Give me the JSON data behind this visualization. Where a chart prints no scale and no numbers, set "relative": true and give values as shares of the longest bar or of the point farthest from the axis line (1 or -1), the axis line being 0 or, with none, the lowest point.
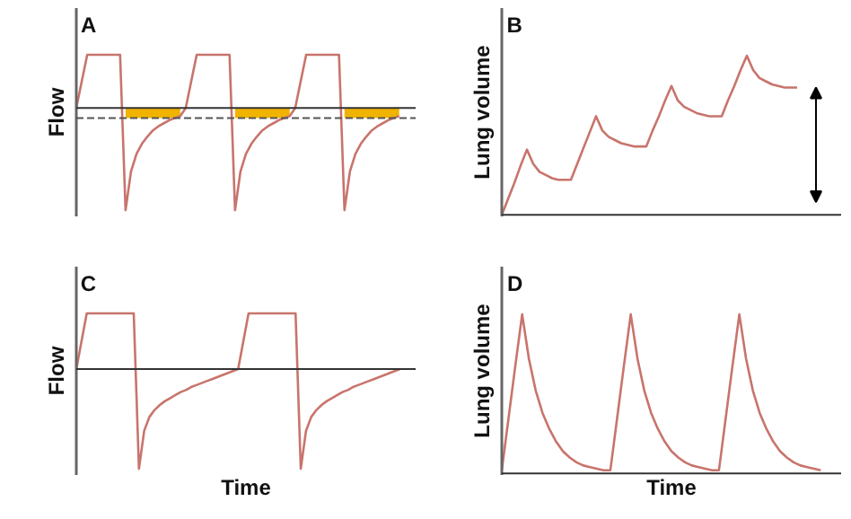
{
  "chart_data": [
    {
      "type": "line",
      "title": "A",
      "ylabel": "Flow",
      "relative": true,
      "categories": [
        null,
        null,
        null,
        null,
        null,
        null,
        null,
        null,
        null,
        null,
        null,
        null,
        null,
        null,
        null,
        null,
        null,
        null,
        null,
        null,
        null,
        null,
        null,
        null,
        null,
        null,
        null,
        null,
        null,
        null,
        null,
        null,
        null,
        null,
        null,
        null,
        null,
        null,
        null,
        null,
        null,
        null,
        null,
        null,
        null,
        null,
        null,
        null,
        null,
        null,
        null,
        null,
        null,
        null,
        null,
        null,
        null,
        null,
        null,
        null
      ],
      "series": [
        {
          "type": "line",
          "color": "#c8746c",
          "values": [
            0,
            0.26,
            0.52,
            0.52,
            0.52,
            0.52,
            0.52,
            0.52,
            0.52,
            -1,
            -0.62,
            -0.45,
            -0.35,
            -0.28,
            -0.22,
            -0.18,
            -0.15,
            -0.12,
            -0.1,
            -0.08,
            0,
            0.26,
            0.52,
            0.52,
            0.52,
            0.52,
            0.52,
            0.52,
            0.52,
            -1,
            -0.62,
            -0.45,
            -0.35,
            -0.28,
            -0.22,
            -0.18,
            -0.15,
            -0.12,
            -0.1,
            -0.08,
            0,
            0.26,
            0.52,
            0.52,
            0.52,
            0.52,
            0.52,
            0.52,
            0.52,
            -1,
            -0.62,
            -0.45,
            -0.35,
            -0.28,
            -0.22,
            -0.18,
            -0.15,
            -0.12,
            -0.1,
            -0.08
          ]
        },
        {
          "type": "area",
          "color": "#f0b400",
          "values": [
            null,
            null,
            null,
            null,
            null,
            null,
            null,
            null,
            null,
            -0.1,
            -0.1,
            -0.1,
            -0.1,
            -0.1,
            -0.1,
            -0.1,
            -0.1,
            -0.1,
            -0.1,
            -0.08,
            null,
            null,
            null,
            null,
            null,
            null,
            null,
            null,
            null,
            -0.1,
            -0.1,
            -0.1,
            -0.1,
            -0.1,
            -0.1,
            -0.1,
            -0.1,
            -0.1,
            -0.1,
            -0.08,
            null,
            null,
            null,
            null,
            null,
            null,
            null,
            null,
            null,
            -0.1,
            -0.1,
            -0.1,
            -0.1,
            -0.1,
            -0.1,
            -0.1,
            -0.1,
            -0.1,
            -0.1,
            -0.08
          ]
        }
      ],
      "ref_lines": [
        {
          "axis": "y",
          "value": -0.1,
          "color": "#555555",
          "line_style": "dashed"
        }
      ]
    },
    {
      "type": "line",
      "title": "B",
      "ylabel": "Lung volume",
      "relative": true,
      "categories": [
        null,
        null,
        null,
        null,
        null,
        null,
        null,
        null,
        null,
        null,
        null,
        null,
        null,
        null,
        null,
        null,
        null,
        null,
        null,
        null,
        null,
        null,
        null,
        null,
        null,
        null,
        null,
        null,
        null,
        null,
        null,
        null,
        null,
        null,
        null,
        null,
        null,
        null,
        null,
        null,
        null,
        null,
        null,
        null,
        null,
        null,
        null,
        null
      ],
      "series": [
        {
          "type": "line",
          "color": "#c8746c",
          "values": [
            0,
            0.1,
            0.2,
            0.31,
            0.41,
            0.32,
            0.27,
            0.25,
            0.23,
            0.22,
            0.22,
            0.22,
            0.32,
            0.42,
            0.52,
            0.62,
            0.53,
            0.49,
            0.47,
            0.45,
            0.44,
            0.43,
            0.43,
            0.43,
            0.53,
            0.62,
            0.72,
            0.81,
            0.72,
            0.68,
            0.66,
            0.64,
            0.63,
            0.62,
            0.62,
            0.62,
            0.72,
            0.81,
            0.91,
            1,
            0.91,
            0.86,
            0.84,
            0.82,
            0.81,
            0.8,
            0.8,
            0.8
          ]
        }
      ]
    },
    {
      "type": "line",
      "title": "C",
      "ylabel": "Flow",
      "xlabel": "Time",
      "relative": true,
      "categories": [
        null,
        null,
        null,
        null,
        null,
        null,
        null,
        null,
        null,
        null,
        null,
        null,
        null,
        null,
        null,
        null,
        null,
        null,
        null,
        null,
        null,
        null,
        null,
        null,
        null,
        null,
        null,
        null,
        null,
        null,
        null,
        null,
        null,
        null,
        null,
        null,
        null,
        null,
        null,
        null,
        null,
        null,
        null,
        null,
        null,
        null,
        null,
        null,
        null,
        null,
        null,
        null,
        null,
        null,
        null,
        null,
        null,
        null,
        null,
        null,
        null,
        null,
        null
      ],
      "series": [
        {
          "type": "line",
          "color": "#c8746c",
          "values": [
            0,
            0.28,
            0.56,
            0.56,
            0.56,
            0.56,
            0.56,
            0.56,
            0.56,
            0.56,
            0.56,
            0.56,
            -1,
            -0.62,
            -0.48,
            -0.41,
            -0.36,
            -0.32,
            -0.29,
            -0.26,
            -0.23,
            -0.21,
            -0.18,
            -0.16,
            -0.14,
            -0.12,
            -0.1,
            -0.08,
            -0.06,
            -0.04,
            -0.02,
            0,
            0.28,
            0.56,
            0.56,
            0.56,
            0.56,
            0.56,
            0.56,
            0.56,
            0.56,
            0.56,
            0.56,
            -1,
            -0.62,
            -0.48,
            -0.41,
            -0.36,
            -0.32,
            -0.29,
            -0.26,
            -0.23,
            -0.21,
            -0.18,
            -0.16,
            -0.14,
            -0.12,
            -0.1,
            -0.08,
            -0.06,
            -0.04,
            -0.02,
            0
          ]
        }
      ]
    },
    {
      "type": "line",
      "title": "D",
      "ylabel": "Lung volume",
      "xlabel": "Time",
      "relative": true,
      "categories": [
        null,
        null,
        null,
        null,
        null,
        null,
        null,
        null,
        null,
        null,
        null,
        null,
        null,
        null,
        null,
        null,
        null,
        null,
        null,
        null,
        null,
        null,
        null,
        null,
        null,
        null,
        null,
        null,
        null,
        null,
        null,
        null,
        null,
        null,
        null,
        null,
        null,
        null,
        null,
        null,
        null,
        null,
        null,
        null,
        null,
        null,
        null,
        null
      ],
      "series": [
        {
          "type": "line",
          "color": "#c8746c",
          "values": [
            0.02,
            0.35,
            0.68,
            1,
            0.72,
            0.52,
            0.38,
            0.28,
            0.2,
            0.14,
            0.1,
            0.07,
            0.05,
            0.04,
            0.03,
            0.02,
            0.02,
            0.35,
            0.68,
            1,
            0.72,
            0.52,
            0.38,
            0.28,
            0.2,
            0.14,
            0.1,
            0.07,
            0.05,
            0.04,
            0.03,
            0.02,
            0.02,
            0.35,
            0.68,
            1,
            0.72,
            0.52,
            0.38,
            0.28,
            0.2,
            0.14,
            0.1,
            0.07,
            0.05,
            0.04,
            0.03,
            0.02
          ]
        }
      ]
    }
  ]
}
